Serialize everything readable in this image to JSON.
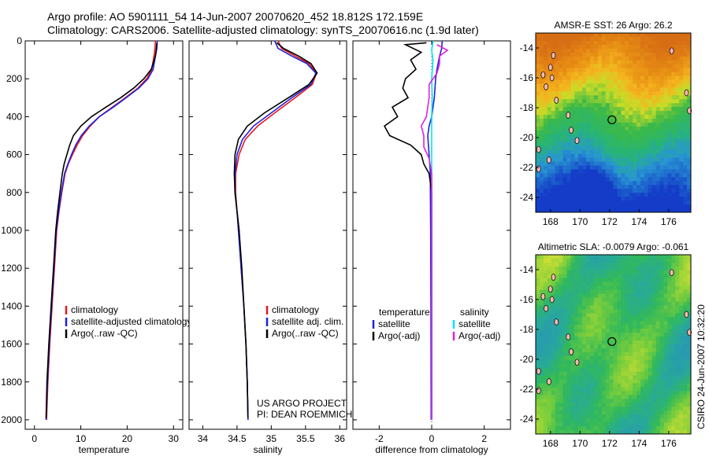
{
  "header": {
    "title_line1": "Argo profile: AO 5901111_54 14-Jun-2007 20070620_452 18.812S 172.159E",
    "title_line2": "Climatology: CARS2006. Satellite-adjusted climatology: synTS_20070616.nc (1.9d later)"
  },
  "side_label": "CSIRO 24-Jun-2007 10:32:20",
  "project_note": [
    "US ARGO PROJECT",
    "PI: DEAN ROEMMICH"
  ],
  "colors": {
    "climatology": "#e41a1c",
    "satellite": "#1f1fe0",
    "argo": "#000000",
    "salt_satellite": "#00e5ee",
    "salt_argo": "#e020e0",
    "land": "#f4b8b0"
  },
  "chart_data": [
    {
      "id": "temperature",
      "type": "line",
      "xlabel": "temperature",
      "ylabel": "",
      "xlim": [
        -2,
        32
      ],
      "ylim": [
        2050,
        0
      ],
      "xticks": [
        0,
        10,
        20,
        30
      ],
      "yticks": [
        0,
        200,
        400,
        600,
        800,
        1000,
        1200,
        1400,
        1600,
        1800,
        2000
      ],
      "grid": false,
      "legend": {
        "placement": "lower-middle",
        "entries": [
          "climatology",
          "satellite-adjusted climatology",
          "Argo(..raw -QC)"
        ]
      },
      "series": [
        {
          "name": "climatology",
          "color": "#e41a1c",
          "values": [
            [
              26.1,
              0
            ],
            [
              26.0,
              40
            ],
            [
              25.8,
              80
            ],
            [
              25.3,
              150
            ],
            [
              24.2,
              200
            ],
            [
              22.3,
              250
            ],
            [
              19.6,
              300
            ],
            [
              16.8,
              350
            ],
            [
              14.0,
              400
            ],
            [
              12.0,
              450
            ],
            [
              10.4,
              500
            ],
            [
              9.2,
              550
            ],
            [
              8.2,
              600
            ],
            [
              7.3,
              650
            ],
            [
              6.6,
              700
            ],
            [
              5.9,
              800
            ],
            [
              5.3,
              900
            ],
            [
              4.8,
              1000
            ],
            [
              4.3,
              1200
            ],
            [
              3.8,
              1400
            ],
            [
              3.3,
              1600
            ],
            [
              2.9,
              1800
            ],
            [
              2.6,
              2000
            ]
          ]
        },
        {
          "name": "satellite-adjusted climatology",
          "color": "#1f1fe0",
          "values": [
            [
              26.5,
              0
            ],
            [
              26.4,
              40
            ],
            [
              26.1,
              80
            ],
            [
              25.6,
              150
            ],
            [
              24.5,
              200
            ],
            [
              22.5,
              250
            ],
            [
              19.8,
              300
            ],
            [
              17.0,
              350
            ],
            [
              14.0,
              400
            ],
            [
              11.8,
              450
            ],
            [
              10.1,
              500
            ],
            [
              8.9,
              550
            ],
            [
              8.0,
              600
            ],
            [
              7.2,
              650
            ],
            [
              6.5,
              700
            ],
            [
              5.8,
              800
            ],
            [
              5.2,
              900
            ],
            [
              4.7,
              1000
            ],
            [
              4.2,
              1200
            ],
            [
              3.7,
              1400
            ],
            [
              3.2,
              1600
            ],
            [
              2.8,
              1800
            ],
            [
              2.5,
              2000
            ]
          ]
        },
        {
          "name": "Argo(..raw -QC)",
          "color": "#000000",
          "values": [
            [
              26.4,
              10
            ],
            [
              26.3,
              40
            ],
            [
              26.1,
              80
            ],
            [
              25.2,
              150
            ],
            [
              23.6,
              200
            ],
            [
              21.4,
              250
            ],
            [
              18.6,
              300
            ],
            [
              15.4,
              350
            ],
            [
              12.3,
              400
            ],
            [
              10.0,
              450
            ],
            [
              8.4,
              500
            ],
            [
              7.6,
              550
            ],
            [
              7.0,
              600
            ],
            [
              6.4,
              650
            ],
            [
              6.0,
              700
            ],
            [
              5.5,
              800
            ],
            [
              5.0,
              900
            ],
            [
              4.6,
              1000
            ],
            [
              4.1,
              1200
            ],
            [
              3.6,
              1400
            ],
            [
              3.1,
              1600
            ],
            [
              2.7,
              1800
            ],
            [
              2.5,
              1990
            ]
          ]
        }
      ]
    },
    {
      "id": "salinity",
      "type": "line",
      "xlabel": "salinity",
      "ylabel": "",
      "xlim": [
        33.8,
        36.1
      ],
      "ylim": [
        2050,
        0
      ],
      "xticks": [
        34,
        34.5,
        35,
        35.5,
        36
      ],
      "xticklabels": [
        "34",
        "34.5",
        "35",
        "35.5",
        "36"
      ],
      "grid": false,
      "legend": {
        "placement": "lower-right",
        "entries": [
          "climatology",
          "satellite adj. clim.",
          "Argo(..raw -QC)"
        ]
      },
      "series": [
        {
          "name": "climatology",
          "color": "#e41a1c",
          "values": [
            [
              35.1,
              0
            ],
            [
              35.15,
              40
            ],
            [
              35.35,
              80
            ],
            [
              35.55,
              120
            ],
            [
              35.66,
              170
            ],
            [
              35.6,
              230
            ],
            [
              35.35,
              300
            ],
            [
              35.05,
              380
            ],
            [
              34.8,
              450
            ],
            [
              34.62,
              520
            ],
            [
              34.53,
              600
            ],
            [
              34.48,
              700
            ],
            [
              34.48,
              800
            ],
            [
              34.5,
              900
            ],
            [
              34.53,
              1000
            ],
            [
              34.56,
              1200
            ],
            [
              34.6,
              1400
            ],
            [
              34.63,
              1600
            ],
            [
              34.65,
              1800
            ],
            [
              34.66,
              2000
            ]
          ]
        },
        {
          "name": "satellite adj. clim.",
          "color": "#1f1fe0",
          "values": [
            [
              35.05,
              0
            ],
            [
              35.1,
              40
            ],
            [
              35.3,
              80
            ],
            [
              35.52,
              120
            ],
            [
              35.65,
              170
            ],
            [
              35.58,
              230
            ],
            [
              35.3,
              300
            ],
            [
              35.0,
              380
            ],
            [
              34.74,
              450
            ],
            [
              34.58,
              520
            ],
            [
              34.5,
              600
            ],
            [
              34.47,
              700
            ],
            [
              34.47,
              800
            ],
            [
              34.5,
              900
            ],
            [
              34.52,
              1000
            ],
            [
              34.56,
              1200
            ],
            [
              34.6,
              1400
            ],
            [
              34.63,
              1600
            ],
            [
              34.65,
              1800
            ],
            [
              34.66,
              2000
            ]
          ]
        },
        {
          "name": "Argo(..raw -QC)",
          "color": "#000000",
          "values": [
            [
              35.08,
              10
            ],
            [
              35.18,
              40
            ],
            [
              35.4,
              80
            ],
            [
              35.58,
              120
            ],
            [
              35.67,
              170
            ],
            [
              35.55,
              230
            ],
            [
              35.25,
              300
            ],
            [
              34.9,
              380
            ],
            [
              34.65,
              450
            ],
            [
              34.52,
              520
            ],
            [
              34.47,
              600
            ],
            [
              34.46,
              700
            ],
            [
              34.47,
              800
            ],
            [
              34.5,
              900
            ],
            [
              34.53,
              1000
            ],
            [
              34.57,
              1200
            ],
            [
              34.6,
              1400
            ],
            [
              34.63,
              1600
            ],
            [
              34.65,
              1800
            ],
            [
              34.66,
              1990
            ]
          ]
        }
      ]
    },
    {
      "id": "difference",
      "type": "line",
      "xlabel": "difference from climatology",
      "ylabel": "",
      "xlim": [
        -3.0,
        3.0
      ],
      "ylim": [
        2050,
        0
      ],
      "xticks": [
        -2,
        0,
        2
      ],
      "grid": false,
      "zero_line": true,
      "legend": {
        "placement": "lower-middle",
        "temperature_title": "temperature",
        "salinity_title": "salinity",
        "entries": [
          "satellite",
          "Argo(-adj)",
          "satellite",
          "Argo(-adj)"
        ]
      },
      "series": [
        {
          "name": "temperature satellite",
          "color": "#1f1fe0",
          "values": [
            [
              0.4,
              0
            ],
            [
              0.38,
              40
            ],
            [
              0.3,
              80
            ],
            [
              0.2,
              150
            ],
            [
              0.15,
              200
            ],
            [
              0.1,
              300
            ],
            [
              0.0,
              400
            ],
            [
              -0.1,
              450
            ],
            [
              -0.15,
              500
            ],
            [
              -0.1,
              600
            ],
            [
              -0.05,
              700
            ],
            [
              -0.05,
              800
            ],
            [
              -0.04,
              1000
            ],
            [
              -0.03,
              1400
            ],
            [
              -0.02,
              2000
            ]
          ]
        },
        {
          "name": "temperature Argo(-adj)",
          "color": "#000000",
          "values": [
            [
              -0.2,
              10
            ],
            [
              -1.0,
              20
            ],
            [
              -0.4,
              60
            ],
            [
              -0.8,
              100
            ],
            [
              -0.6,
              150
            ],
            [
              -1.0,
              200
            ],
            [
              -1.1,
              250
            ],
            [
              -0.9,
              300
            ],
            [
              -1.5,
              350
            ],
            [
              -1.3,
              400
            ],
            [
              -1.8,
              450
            ],
            [
              -1.6,
              500
            ],
            [
              -0.8,
              550
            ],
            [
              -0.4,
              600
            ],
            [
              -0.3,
              650
            ],
            [
              -0.1,
              700
            ],
            [
              0.0,
              800
            ],
            [
              0.0,
              2000
            ]
          ]
        },
        {
          "name": "salinity satellite",
          "color": "#00e5ee",
          "values": [
            [
              0.05,
              0
            ],
            [
              0.0,
              50
            ],
            [
              0.05,
              100
            ],
            [
              0.0,
              200
            ],
            [
              0.02,
              300
            ],
            [
              0.0,
              400
            ],
            [
              0.0,
              2000
            ]
          ]
        },
        {
          "name": "salinity Argo(-adj)",
          "color": "#e020e0",
          "values": [
            [
              0.2,
              20
            ],
            [
              0.6,
              50
            ],
            [
              0.3,
              80
            ],
            [
              0.3,
              120
            ],
            [
              0.2,
              170
            ],
            [
              -0.1,
              230
            ],
            [
              -0.1,
              300
            ],
            [
              -0.2,
              400
            ],
            [
              -0.4,
              450
            ],
            [
              -0.3,
              500
            ],
            [
              -0.3,
              560
            ],
            [
              -0.1,
              620
            ],
            [
              0.0,
              700
            ],
            [
              0.0,
              2000
            ]
          ]
        }
      ]
    },
    {
      "id": "sst_map",
      "type": "heatmap",
      "title": "AMSR-E SST: 26 Argo: 26.2",
      "xlim": [
        167,
        177.5
      ],
      "ylim": [
        -25,
        -13
      ],
      "xticks": [
        168,
        170,
        172,
        174,
        176
      ],
      "yticks": [
        -14,
        -16,
        -18,
        -20,
        -22,
        -24
      ],
      "marker": {
        "lon": 172.159,
        "lat": -18.812
      }
    },
    {
      "id": "sla_map",
      "type": "heatmap",
      "title": "Altimetric SLA: -0.0079 Argo: -0.061",
      "xlim": [
        167,
        177.5
      ],
      "ylim": [
        -25,
        -13
      ],
      "xticks": [
        168,
        170,
        172,
        174,
        176
      ],
      "yticks": [
        -14,
        -16,
        -18,
        -20,
        -22,
        -24
      ],
      "marker": {
        "lon": 172.159,
        "lat": -18.812
      }
    }
  ]
}
